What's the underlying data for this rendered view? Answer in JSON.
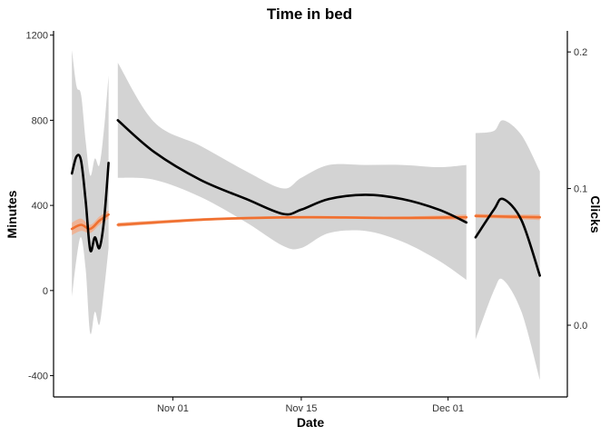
{
  "chart_data": {
    "type": "line",
    "title": "Time in bed",
    "xlabel": "Date",
    "ylabel": "Minutes",
    "y2label": "Clicks",
    "x_range": [
      "2025-10-19",
      "2025-12-14"
    ],
    "x_ticks": [
      {
        "date": "2025-11-01",
        "label": "Nov 01"
      },
      {
        "date": "2025-11-15",
        "label": "Nov 15"
      },
      {
        "date": "2025-12-01",
        "label": "Dec 01"
      }
    ],
    "ylim": [
      -500,
      1220
    ],
    "y_ticks": [
      -400,
      0,
      400,
      800,
      1200
    ],
    "y2lim": [
      -0.0525,
      0.2154
    ],
    "y2_ticks": [
      {
        "value": 0.0,
        "label": "0.0"
      },
      {
        "value": 0.1,
        "label": "0.1"
      },
      {
        "value": 0.2,
        "label": "0.2"
      }
    ],
    "colors": {
      "minutes_line": "#000000",
      "confidence_band": "#d3d3d3",
      "clicks_line": "#f07030",
      "clicks_band": "#f5a882",
      "axis": "#000000"
    },
    "grid": false,
    "series": [
      {
        "axis": "left",
        "segments": [
          {
            "points": [
              [
                "2025-10-21",
                550
              ],
              [
                "2025-10-21T12:00",
                630
              ],
              [
                "2025-10-22",
                610
              ],
              [
                "2025-10-22T12:00",
                420
              ],
              [
                "2025-10-23",
                190
              ],
              [
                "2025-10-23T12:00",
                250
              ],
              [
                "2025-10-24",
                200
              ],
              [
                "2025-10-24T12:00",
                330
              ],
              [
                "2025-10-25",
                600
              ]
            ],
            "lower": [
              -30,
              150,
              250,
              100,
              -200,
              -100,
              -160,
              0,
              200
            ],
            "upper": [
              1130,
              960,
              920,
              700,
              540,
              620,
              590,
              760,
              1010
            ]
          },
          {
            "points": [
              [
                "2025-10-26",
                800
              ],
              [
                "2025-10-30",
                650
              ],
              [
                "2025-11-04",
                520
              ],
              [
                "2025-11-09",
                430
              ],
              [
                "2025-11-13",
                360
              ],
              [
                "2025-11-15",
                380
              ],
              [
                "2025-11-18",
                430
              ],
              [
                "2025-11-22",
                450
              ],
              [
                "2025-11-26",
                430
              ],
              [
                "2025-11-30",
                380
              ],
              [
                "2025-12-03",
                320
              ]
            ],
            "lower": [
              530,
              520,
              440,
              320,
              210,
              200,
              270,
              280,
              230,
              140,
              50
            ],
            "upper": [
              1070,
              790,
              680,
              560,
              480,
              530,
              590,
              590,
              590,
              580,
              590
            ]
          },
          {
            "points": [
              [
                "2025-12-04",
                250
              ],
              [
                "2025-12-06",
                380
              ],
              [
                "2025-12-07",
                430
              ],
              [
                "2025-12-09",
                330
              ],
              [
                "2025-12-11",
                70
              ]
            ],
            "lower": [
              -230,
              0,
              50,
              -100,
              -420
            ],
            "upper": [
              740,
              750,
              800,
              730,
              560
            ]
          }
        ]
      },
      {
        "axis": "right",
        "segments": [
          {
            "points": [
              [
                "2025-10-21",
                0.0705
              ],
              [
                "2025-10-22",
                0.0735
              ],
              [
                "2025-10-23",
                0.0705
              ],
              [
                "2025-10-24",
                0.0765
              ],
              [
                "2025-10-25",
                0.081
              ]
            ],
            "lower": [
              0.066,
              0.069,
              0.0675,
              0.0735,
              0.078
            ],
            "upper": [
              0.075,
              0.078,
              0.0735,
              0.0795,
              0.084
            ]
          },
          {
            "points": [
              [
                "2025-10-26",
                0.0735
              ],
              [
                "2025-11-05",
                0.0775
              ],
              [
                "2025-11-15",
                0.079
              ],
              [
                "2025-11-25",
                0.0785
              ],
              [
                "2025-12-03",
                0.079
              ]
            ],
            "lower": [
              0.072,
              0.0765,
              0.078,
              0.0775,
              0.077
            ],
            "upper": [
              0.075,
              0.0785,
              0.08,
              0.0795,
              0.081
            ]
          },
          {
            "points": [
              [
                "2025-12-04",
                0.08
              ],
              [
                "2025-12-07",
                0.0795
              ],
              [
                "2025-12-11",
                0.079
              ]
            ],
            "lower": [
              0.0785,
              0.078,
              0.077
            ],
            "upper": [
              0.0815,
              0.081,
              0.081
            ]
          }
        ]
      }
    ]
  }
}
